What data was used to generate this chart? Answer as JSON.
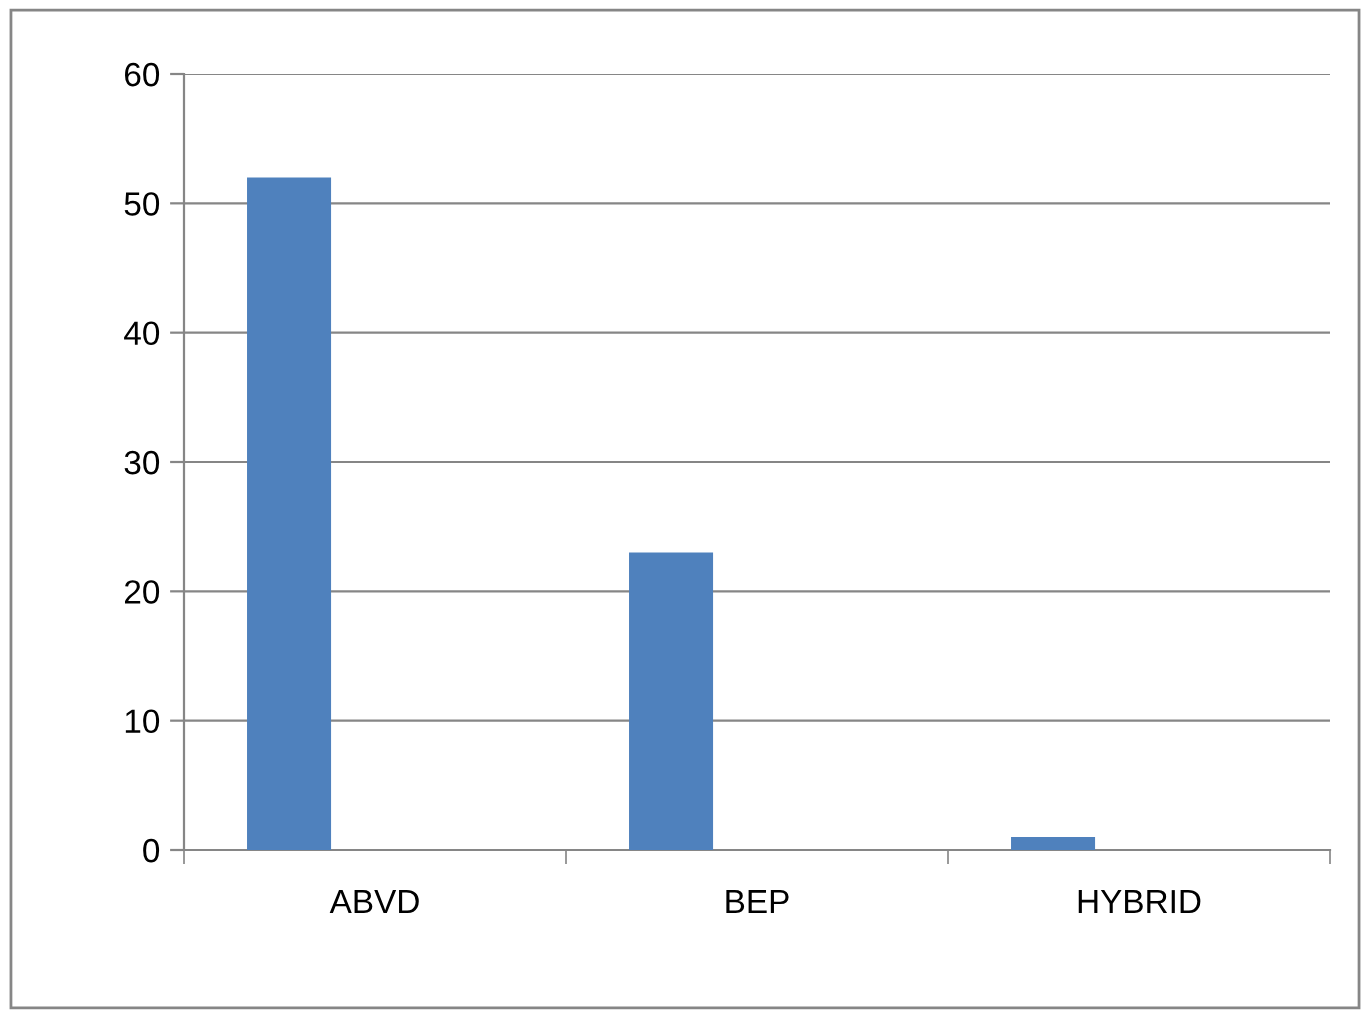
{
  "chart_data": {
    "type": "bar",
    "categories": [
      "ABVD",
      "BEP",
      "HYBRID"
    ],
    "values": [
      52,
      23,
      1
    ],
    "color": "#4f81bd",
    "ylim": [
      0,
      60
    ],
    "yticks": [
      0,
      10,
      20,
      30,
      40,
      50,
      60
    ],
    "grid": "y",
    "legend": false
  }
}
